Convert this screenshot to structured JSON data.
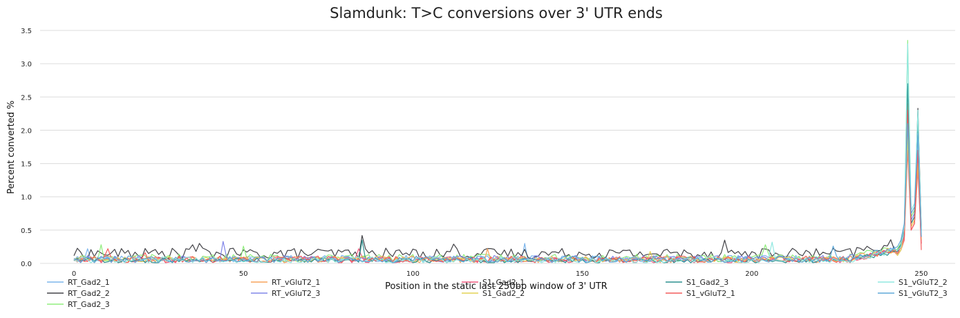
{
  "chart_data": {
    "type": "line",
    "title": "Slamdunk: T>C conversions over 3' UTR ends",
    "xlabel": "Position in the static last 250bp window of 3' UTR",
    "ylabel": "Percent converted %",
    "xlim": [
      -10,
      260
    ],
    "ylim": [
      0,
      3.5
    ],
    "xticks": [
      0,
      50,
      100,
      150,
      200,
      250
    ],
    "yticks": [
      0.0,
      0.5,
      1.0,
      1.5,
      2.0,
      2.5,
      3.0,
      3.5
    ],
    "ytick_labels": [
      "0.0",
      "0.5",
      "1.0",
      "1.5",
      "2.0",
      "2.5",
      "3.0",
      "3.5"
    ],
    "grid": "horizontal",
    "legend_placement": "bottom",
    "series": [
      {
        "name": "RT_Gad2_1",
        "color": "#7cb5ec",
        "base": 0.07,
        "noise": 0.05,
        "spikes": [
          [
            4,
            0.22
          ],
          [
            133,
            0.3
          ]
        ],
        "end": [
          0.12,
          0.2,
          0.45,
          2.05,
          0.7,
          0.8,
          1.9,
          0.4
        ]
      },
      {
        "name": "RT_Gad2_2",
        "color": "#434348",
        "base": 0.15,
        "noise": 0.08,
        "spikes": [
          [
            35,
            0.28
          ],
          [
            37,
            0.3
          ],
          [
            85,
            0.42
          ],
          [
            112,
            0.29
          ],
          [
            192,
            0.35
          ]
        ],
        "end": [
          0.2,
          0.3,
          0.55,
          2.25,
          0.6,
          0.7,
          2.33,
          0.5
        ]
      },
      {
        "name": "RT_Gad2_3",
        "color": "#90ed7d",
        "base": 0.08,
        "noise": 0.06,
        "spikes": [
          [
            8,
            0.28
          ],
          [
            50,
            0.26
          ],
          [
            204,
            0.28
          ]
        ],
        "end": [
          0.22,
          0.3,
          0.5,
          3.35,
          0.7,
          0.8,
          2.2,
          0.35
        ]
      },
      {
        "name": "RT_vGluT2_1",
        "color": "#f7a35c",
        "base": 0.06,
        "noise": 0.05,
        "spikes": [
          [
            122,
            0.22
          ]
        ],
        "end": [
          0.15,
          0.2,
          0.35,
          2.4,
          0.55,
          0.65,
          1.5,
          0.3
        ]
      },
      {
        "name": "RT_vGluT2_3",
        "color": "#8085e9",
        "base": 0.07,
        "noise": 0.05,
        "spikes": [
          [
            44,
            0.33
          ]
        ],
        "end": [
          0.15,
          0.25,
          0.4,
          2.0,
          0.65,
          0.75,
          1.6,
          0.3
        ]
      },
      {
        "name": "S1_Gad2_1",
        "color": "#f15c80",
        "base": 0.05,
        "noise": 0.05,
        "spikes": [
          [
            84,
            0.22
          ]
        ],
        "end": [
          0.12,
          0.2,
          0.35,
          1.7,
          0.5,
          0.6,
          1.4,
          0.3
        ]
      },
      {
        "name": "S1_Gad2_2",
        "color": "#e4d354",
        "base": 0.06,
        "noise": 0.04,
        "spikes": [
          [
            170,
            0.18
          ]
        ],
        "end": [
          0.12,
          0.2,
          0.4,
          1.9,
          0.55,
          0.65,
          1.5,
          0.35
        ]
      },
      {
        "name": "S1_Gad2_3",
        "color": "#2b908f",
        "base": 0.04,
        "noise": 0.04,
        "spikes": [
          [
            85,
            0.35
          ]
        ],
        "end": [
          0.18,
          0.28,
          0.5,
          2.7,
          0.6,
          0.7,
          2.1,
          0.4
        ]
      },
      {
        "name": "S1_vGluT2_1",
        "color": "#f45b5b",
        "base": 0.06,
        "noise": 0.05,
        "spikes": [
          [
            10,
            0.22
          ],
          [
            21,
            0.16
          ]
        ],
        "end": [
          0.15,
          0.25,
          0.4,
          2.3,
          0.5,
          0.6,
          1.7,
          0.2
        ]
      },
      {
        "name": "S1_vGluT2_2",
        "color": "#91e8e1",
        "base": 0.05,
        "noise": 0.05,
        "spikes": [
          [
            206,
            0.32
          ]
        ],
        "end": [
          0.2,
          0.25,
          0.55,
          3.3,
          0.8,
          0.9,
          2.3,
          0.45
        ]
      },
      {
        "name": "S1_vGluT2_3",
        "color": "#5fa8d8",
        "base": 0.06,
        "noise": 0.05,
        "spikes": [
          [
            224,
            0.26
          ]
        ],
        "end": [
          0.25,
          0.35,
          0.6,
          2.1,
          0.75,
          0.85,
          1.95,
          0.4
        ]
      }
    ]
  }
}
